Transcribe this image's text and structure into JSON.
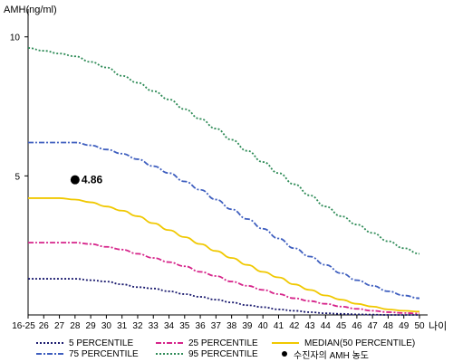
{
  "chart_data": {
    "type": "line",
    "ylabel": "AMH(ng/ml)",
    "xlabel": "나이",
    "ylim": [
      0,
      11
    ],
    "yticks": [
      5,
      10
    ],
    "categories": [
      "16-25",
      "26",
      "27",
      "28",
      "29",
      "30",
      "31",
      "32",
      "33",
      "34",
      "35",
      "36",
      "37",
      "38",
      "39",
      "40",
      "41",
      "42",
      "43",
      "44",
      "45",
      "46",
      "47",
      "48",
      "49",
      "50"
    ],
    "series": [
      {
        "name": "95 PERCENTILE",
        "color": "#2e8b57",
        "dash": "2,2",
        "values": [
          9.6,
          9.5,
          9.4,
          9.3,
          9.1,
          8.9,
          8.6,
          8.35,
          8.05,
          7.75,
          7.4,
          7.05,
          6.7,
          6.3,
          5.9,
          5.5,
          5.1,
          4.7,
          4.3,
          3.9,
          3.55,
          3.25,
          2.95,
          2.65,
          2.4,
          2.2
        ]
      },
      {
        "name": "75 PERCENTILE",
        "color": "#3f5fbf",
        "dash": "6,2,2,2",
        "values": [
          6.2,
          6.2,
          6.2,
          6.2,
          6.1,
          5.95,
          5.8,
          5.6,
          5.35,
          5.1,
          4.8,
          4.5,
          4.15,
          3.8,
          3.45,
          3.1,
          2.75,
          2.4,
          2.1,
          1.8,
          1.5,
          1.25,
          1.05,
          0.85,
          0.7,
          0.6
        ]
      },
      {
        "name": "MEDIAN(50 PERCENTILE)",
        "color": "#f0c800",
        "dash": "",
        "values": [
          4.2,
          4.2,
          4.2,
          4.15,
          4.05,
          3.9,
          3.75,
          3.55,
          3.3,
          3.05,
          2.8,
          2.55,
          2.3,
          2.05,
          1.8,
          1.55,
          1.35,
          1.1,
          0.9,
          0.7,
          0.55,
          0.4,
          0.3,
          0.2,
          0.15,
          0.12
        ]
      },
      {
        "name": "25 PERCENTILE",
        "color": "#d6248a",
        "dash": "6,2,2,2",
        "values": [
          2.6,
          2.6,
          2.6,
          2.6,
          2.55,
          2.45,
          2.35,
          2.2,
          2.05,
          1.9,
          1.75,
          1.55,
          1.4,
          1.2,
          1.05,
          0.9,
          0.75,
          0.6,
          0.5,
          0.4,
          0.3,
          0.22,
          0.15,
          0.1,
          0.07,
          0.05
        ]
      },
      {
        "name": "5 PERCENTILE",
        "color": "#1a1a6e",
        "dash": "2,2",
        "values": [
          1.3,
          1.3,
          1.3,
          1.3,
          1.25,
          1.2,
          1.1,
          1.0,
          0.95,
          0.85,
          0.75,
          0.65,
          0.55,
          0.45,
          0.35,
          0.28,
          0.2,
          0.15,
          0.1,
          0.06,
          0.04,
          0.02,
          0.01,
          0.0,
          0.0,
          0.0
        ]
      }
    ],
    "marker": {
      "label": "수진자의 AMH 농도",
      "category": "28",
      "value": 4.86,
      "value_label": "4.86",
      "color": "#000000"
    },
    "legend": [
      {
        "name": "5 PERCENTILE",
        "color": "#1a1a6e",
        "dash": "2,2",
        "kind": "line"
      },
      {
        "name": "25 PERCENTILE",
        "color": "#d6248a",
        "dash": "6,2,2,2",
        "kind": "line"
      },
      {
        "name": "MEDIAN(50 PERCENTILE)",
        "color": "#f0c800",
        "dash": "",
        "kind": "line"
      },
      {
        "name": "75 PERCENTILE",
        "color": "#3f5fbf",
        "dash": "6,2,2,2",
        "kind": "line"
      },
      {
        "name": "95 PERCENTILE",
        "color": "#2e8b57",
        "dash": "2,2",
        "kind": "line"
      },
      {
        "name": "수진자의 AMH 농도",
        "color": "#000000",
        "dash": "",
        "kind": "dot"
      }
    ]
  }
}
